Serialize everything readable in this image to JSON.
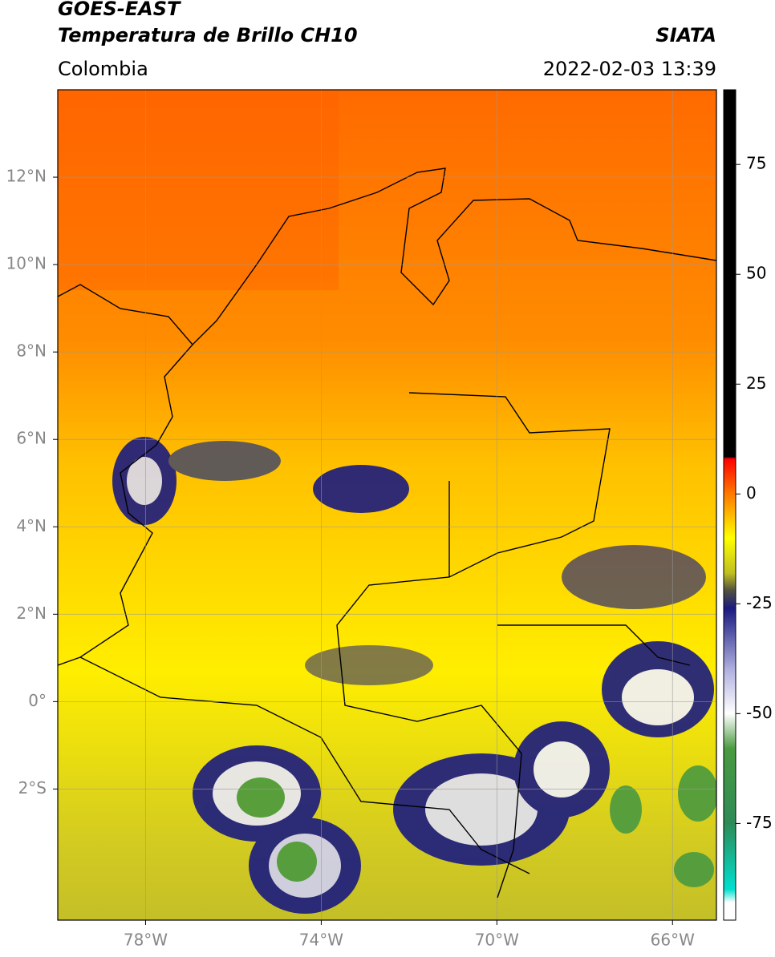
{
  "header": {
    "title": "GOES-EAST",
    "subtitle": "Temperatura de Brillo CH10",
    "region": "Colombia",
    "source": "SIATA",
    "datetime": "2022-02-03 13:39"
  },
  "map": {
    "xlim": [
      -80,
      -65
    ],
    "ylim": [
      -5,
      14
    ],
    "grid": true,
    "xticks": [
      {
        "value": -78,
        "label": "78°W"
      },
      {
        "value": -74,
        "label": "74°W"
      },
      {
        "value": -70,
        "label": "70°W"
      },
      {
        "value": -66,
        "label": "66°W"
      }
    ],
    "yticks": [
      {
        "value": 12,
        "label": "12°N"
      },
      {
        "value": 10,
        "label": "10°N"
      },
      {
        "value": 8,
        "label": "8°N"
      },
      {
        "value": 6,
        "label": "6°N"
      },
      {
        "value": 4,
        "label": "4°N"
      },
      {
        "value": 2,
        "label": "2°N"
      },
      {
        "value": 0,
        "label": "0°"
      },
      {
        "value": -2,
        "label": "2°S"
      }
    ]
  },
  "colorbar": {
    "lim": [
      -97,
      92
    ],
    "ticks": [
      75,
      50,
      25,
      0,
      -25,
      -50,
      -75
    ],
    "colormap": [
      {
        "value": 92,
        "color": "#000000"
      },
      {
        "value": 8.5,
        "color": "#000000"
      },
      {
        "value": 8,
        "color": "#ff0000"
      },
      {
        "value": 0,
        "color": "#ff7a00"
      },
      {
        "value": -10,
        "color": "#ffff00"
      },
      {
        "value": -18,
        "color": "#c0bf20"
      },
      {
        "value": -22,
        "color": "#505040"
      },
      {
        "value": -26,
        "color": "#1a1a80"
      },
      {
        "value": -40,
        "color": "#b0b0e0"
      },
      {
        "value": -50,
        "color": "#ffffff"
      },
      {
        "value": -58,
        "color": "#4a9a40"
      },
      {
        "value": -75,
        "color": "#2e8b57"
      },
      {
        "value": -90,
        "color": "#00e0d0"
      },
      {
        "value": -93,
        "color": "#ffffff"
      }
    ]
  }
}
